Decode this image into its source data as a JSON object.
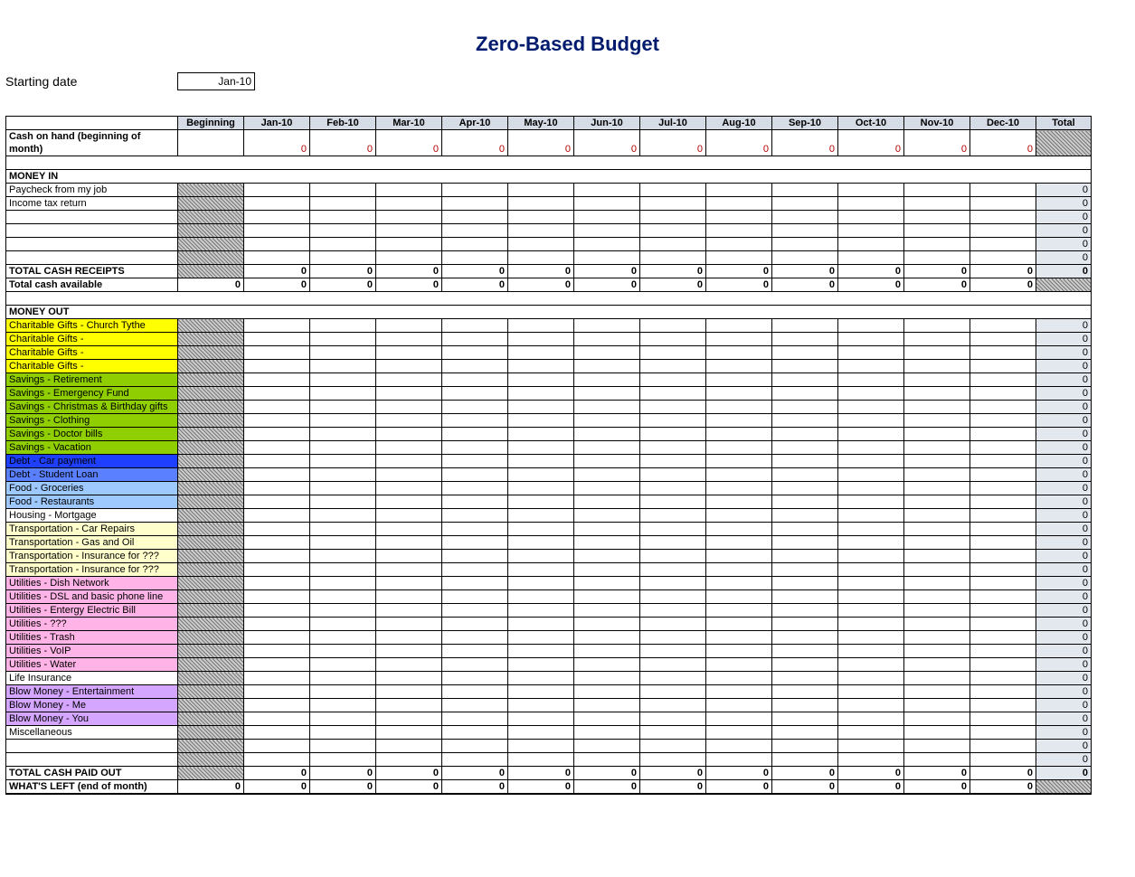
{
  "title": "Zero-Based Budget",
  "starting_date_label": "Starting date",
  "starting_date_value": "Jan-10",
  "columns": [
    "Beginning",
    "Jan-10",
    "Feb-10",
    "Mar-10",
    "Apr-10",
    "May-10",
    "Jun-10",
    "Jul-10",
    "Aug-10",
    "Sep-10",
    "Oct-10",
    "Nov-10",
    "Dec-10",
    "Total"
  ],
  "cash_on_hand": {
    "label": "Cash on hand (beginning of month)",
    "beginning": "",
    "months": [
      "0",
      "0",
      "0",
      "0",
      "0",
      "0",
      "0",
      "0",
      "0",
      "0",
      "0",
      "0"
    ],
    "total_hatch": true
  },
  "money_in": {
    "section_label": "MONEY IN",
    "rows": [
      {
        "label": "Paycheck from my job",
        "bg": "#ffffff",
        "total": "0"
      },
      {
        "label": "Income tax return",
        "bg": "#ffffff",
        "total": "0"
      },
      {
        "label": "",
        "bg": "#ffffff",
        "total": "0"
      },
      {
        "label": "",
        "bg": "#ffffff",
        "total": "0"
      },
      {
        "label": "",
        "bg": "#ffffff",
        "total": "0"
      },
      {
        "label": "",
        "bg": "#ffffff",
        "total": "0"
      }
    ],
    "total_receipts": {
      "label": "TOTAL CASH RECEIPTS",
      "months": [
        "0",
        "0",
        "0",
        "0",
        "0",
        "0",
        "0",
        "0",
        "0",
        "0",
        "0",
        "0"
      ],
      "total": "0"
    },
    "total_available": {
      "label": "Total cash available",
      "beginning": "0",
      "months": [
        "0",
        "0",
        "0",
        "0",
        "0",
        "0",
        "0",
        "0",
        "0",
        "0",
        "0",
        "0"
      ],
      "total_hatch": true
    }
  },
  "money_out": {
    "section_label": "MONEY OUT",
    "rows": [
      {
        "label": "Charitable Gifts - Church Tythe",
        "bg": "#ffff00",
        "total": "0"
      },
      {
        "label": "Charitable Gifts -",
        "bg": "#ffff00",
        "total": "0"
      },
      {
        "label": "Charitable Gifts -",
        "bg": "#ffff00",
        "total": "0"
      },
      {
        "label": "Charitable Gifts -",
        "bg": "#ffff00",
        "total": "0"
      },
      {
        "label": "Savings - Retirement",
        "bg": "#8fce00",
        "total": "0"
      },
      {
        "label": "Savings - Emergency Fund",
        "bg": "#8fce00",
        "total": "0"
      },
      {
        "label": "Savings - Christmas & Birthday gifts",
        "bg": "#8fce00",
        "total": "0"
      },
      {
        "label": "Savings - Clothing",
        "bg": "#8fce00",
        "total": "0"
      },
      {
        "label": "Savings - Doctor bills",
        "bg": "#8fce00",
        "total": "0"
      },
      {
        "label": "Savings - Vacation",
        "bg": "#8fce00",
        "total": "0"
      },
      {
        "label": "Debt - Car payment",
        "bg": "#1f3fff",
        "fg": "#000000",
        "total": "0"
      },
      {
        "label": "Debt - Student Loan",
        "bg": "#5a80ff",
        "total": "0"
      },
      {
        "label": "Food - Groceries",
        "bg": "#9ec9ff",
        "total": "0"
      },
      {
        "label": "Food - Restaurants",
        "bg": "#9ec9ff",
        "total": "0"
      },
      {
        "label": "Housing - Mortgage",
        "bg": "#ffffff",
        "total": "0"
      },
      {
        "label": "Transportation - Car Repairs",
        "bg": "#ffffcc",
        "total": "0"
      },
      {
        "label": "Transportation - Gas and Oil",
        "bg": "#ffffcc",
        "total": "0"
      },
      {
        "label": "Transportation - Insurance for ???",
        "bg": "#ffffcc",
        "total": "0"
      },
      {
        "label": "Transportation - Insurance for ???",
        "bg": "#ffffcc",
        "total": "0"
      },
      {
        "label": "Utilities - Dish Network",
        "bg": "#ffb3e6",
        "total": "0"
      },
      {
        "label": "Utilities - DSL and basic phone line",
        "bg": "#ffb3e6",
        "total": "0"
      },
      {
        "label": "Utilities - Entergy Electric Bill",
        "bg": "#ffb3e6",
        "total": "0"
      },
      {
        "label": "Utilities - ???",
        "bg": "#ffb3e6",
        "total": "0"
      },
      {
        "label": "Utilities - Trash",
        "bg": "#ffb3e6",
        "total": "0"
      },
      {
        "label": "Utilities - VoIP",
        "bg": "#ffb3e6",
        "total": "0"
      },
      {
        "label": "Utilities - Water",
        "bg": "#ffb3e6",
        "total": "0"
      },
      {
        "label": "Life Insurance",
        "bg": "#ffffff",
        "total": "0"
      },
      {
        "label": "Blow Money - Entertainment",
        "bg": "#d4a6ff",
        "total": "0"
      },
      {
        "label": "Blow Money - Me",
        "bg": "#d4a6ff",
        "total": "0"
      },
      {
        "label": "Blow Money - You",
        "bg": "#d4a6ff",
        "total": "0"
      },
      {
        "label": "Miscellaneous",
        "bg": "#ffffff",
        "total": "0"
      },
      {
        "label": "",
        "bg": "#ffffff",
        "total": "0"
      },
      {
        "label": "",
        "bg": "#ffffff",
        "total": "0"
      }
    ],
    "total_paid": {
      "label": "TOTAL CASH PAID OUT",
      "months": [
        "0",
        "0",
        "0",
        "0",
        "0",
        "0",
        "0",
        "0",
        "0",
        "0",
        "0",
        "0"
      ],
      "total": "0"
    },
    "whats_left": {
      "label": "WHAT'S LEFT (end of month)",
      "beginning": "0",
      "months": [
        "0",
        "0",
        "0",
        "0",
        "0",
        "0",
        "0",
        "0",
        "0",
        "0",
        "0",
        "0"
      ],
      "total_hatch": true
    }
  },
  "style": {
    "title_color": "#001a6e",
    "header_bg": "#d5dce6",
    "total_col_bg": "#e3e8ef",
    "cash_value_color": "#b30000",
    "font_family": "Arial",
    "title_fontsize_pt": 16,
    "body_fontsize_pt": 8
  }
}
